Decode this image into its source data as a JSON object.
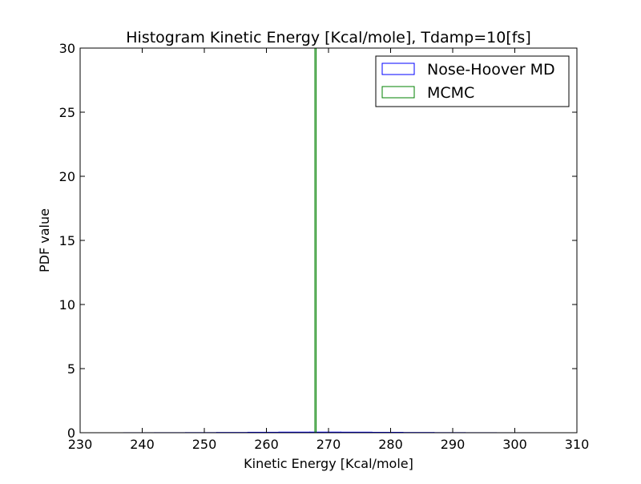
{
  "chart_data": {
    "type": "bar",
    "histtype": "step",
    "title": "Histogram Kinetic Energy [Kcal/mole], Tdamp=10[fs]",
    "xlabel": "Kinetic Energy [Kcal/mole]",
    "ylabel": "PDF value",
    "xlim": [
      230,
      310
    ],
    "ylim": [
      0,
      30
    ],
    "xticks": [
      230,
      240,
      250,
      260,
      270,
      280,
      290,
      300,
      310
    ],
    "yticks": [
      0,
      5,
      10,
      15,
      20,
      25,
      30
    ],
    "legend_placement": "top-right",
    "grid": false,
    "series": [
      {
        "name": "Nose-Hoover MD",
        "color": "#0000ff",
        "bins": [
          [
            237,
            242,
            0.003
          ],
          [
            242,
            247,
            0.006
          ],
          [
            247,
            252,
            0.012
          ],
          [
            252,
            257,
            0.022
          ],
          [
            257,
            262,
            0.035
          ],
          [
            262,
            267,
            0.045
          ],
          [
            267,
            272,
            0.047
          ],
          [
            272,
            277,
            0.042
          ],
          [
            277,
            282,
            0.032
          ],
          [
            282,
            287,
            0.02
          ],
          [
            287,
            292,
            0.01
          ],
          [
            292,
            297,
            0.005
          ],
          [
            297,
            304,
            0.002
          ]
        ]
      },
      {
        "name": "MCMC",
        "color": "#008000",
        "bins": [
          [
            267.8,
            268.0,
            30
          ]
        ]
      }
    ]
  }
}
